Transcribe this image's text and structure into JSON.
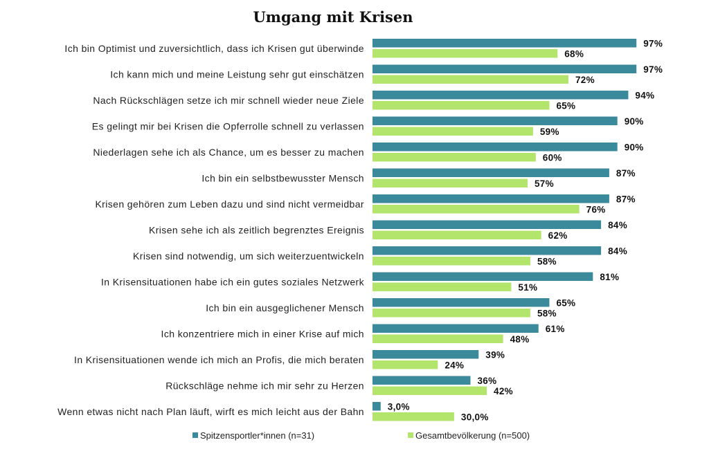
{
  "chart_data": {
    "type": "bar",
    "orientation": "horizontal",
    "title": "Umgang mit Krisen",
    "xlabel": "",
    "ylabel": "",
    "xlim": [
      0,
      100
    ],
    "grid": false,
    "legend_position": "bottom",
    "categories": [
      "Ich bin Optimist und zuversichtlich, dass ich Krisen gut überwinde",
      "Ich kann mich und meine Leistung sehr gut einschätzen",
      "Nach Rückschlägen setze ich mir schnell wieder neue Ziele",
      "Es gelingt mir bei Krisen die Opferrolle schnell zu verlassen",
      "Niederlagen sehe ich als Chance, um es besser zu machen",
      "Ich bin ein selbstbewusster Mensch",
      "Krisen gehören zum Leben dazu und sind nicht vermeidbar",
      "Krisen sehe ich als zeitlich begrenztes Ereignis",
      "Krisen sind notwendig, um sich weiterzuentwickeln",
      "In Krisensituationen habe ich ein gutes soziales Netzwerk",
      "Ich bin ein ausgeglichener Mensch",
      "Ich konzentriere mich in einer Krise auf mich",
      "In Krisensituationen wende ich mich an Profis, die mich beraten",
      "Rückschläge nehme ich mir sehr zu Herzen",
      "Wenn etwas nicht nach Plan läuft, wirft es mich leicht aus der Bahn"
    ],
    "series": [
      {
        "name": "Spitzensportler*innen (n=31)",
        "color": "#3b8a9b",
        "values": [
          97,
          97,
          94,
          90,
          90,
          87,
          87,
          84,
          84,
          81,
          65,
          61,
          39,
          36,
          3.0
        ],
        "labels": [
          "97%",
          "97%",
          "94%",
          "90%",
          "90%",
          "87%",
          "87%",
          "84%",
          "84%",
          "81%",
          "65%",
          "61%",
          "39%",
          "36%",
          "3,0%"
        ]
      },
      {
        "name": "Gesamtbevölkerung (n=500)",
        "color": "#b3e56c",
        "values": [
          68,
          72,
          65,
          59,
          60,
          57,
          76,
          62,
          58,
          51,
          58,
          48,
          24,
          42,
          30.0
        ],
        "labels": [
          "68%",
          "72%",
          "65%",
          "59%",
          "60%",
          "57%",
          "76%",
          "62%",
          "58%",
          "51%",
          "58%",
          "48%",
          "24%",
          "42%",
          "30,0%"
        ]
      }
    ]
  }
}
